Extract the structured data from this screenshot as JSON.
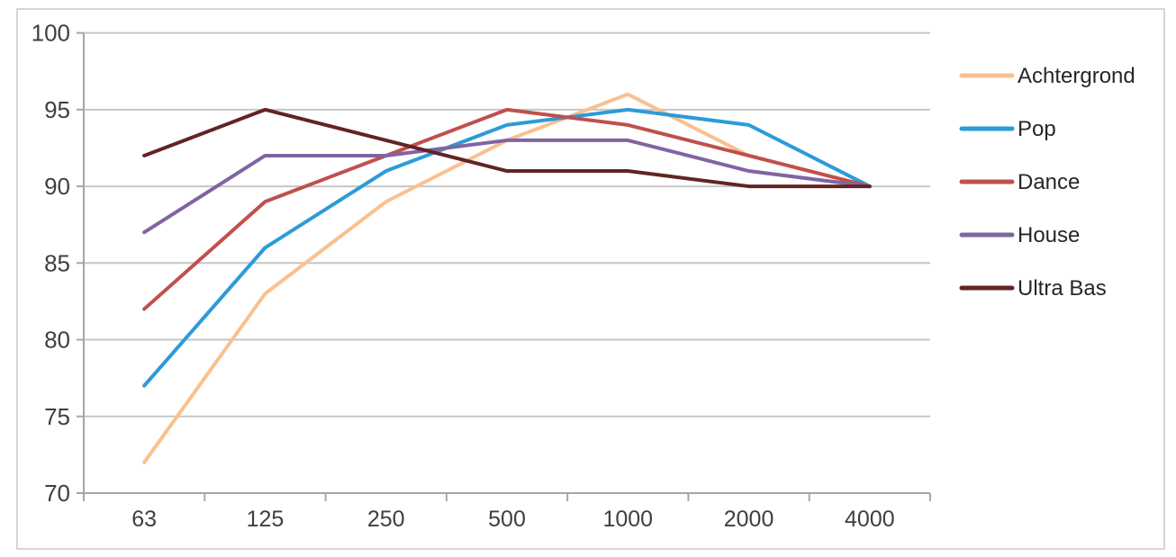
{
  "chart_data": {
    "type": "line",
    "title": "",
    "categories": [
      "63",
      "125",
      "250",
      "500",
      "1000",
      "2000",
      "4000"
    ],
    "series": [
      {
        "name": "Achtergrond",
        "color": "#FAC08F",
        "values": [
          72,
          83,
          89,
          93,
          96,
          92,
          90
        ]
      },
      {
        "name": "Pop",
        "color": "#2D9BD8",
        "values": [
          77,
          86,
          91,
          94,
          95,
          94,
          90
        ]
      },
      {
        "name": "Dance",
        "color": "#C0504D",
        "values": [
          82,
          89,
          92,
          95,
          94,
          92,
          90
        ]
      },
      {
        "name": "House",
        "color": "#8064A2",
        "values": [
          87,
          92,
          92,
          93,
          93,
          91,
          90
        ]
      },
      {
        "name": "Ultra Bas",
        "color": "#622423",
        "values": [
          92,
          95,
          93,
          91,
          91,
          90,
          90
        ]
      }
    ],
    "y_axis": {
      "min": 70,
      "max": 100,
      "step": 5,
      "tick_labels": [
        "70",
        "75",
        "80",
        "85",
        "90",
        "95",
        "100"
      ]
    },
    "x_axis": {
      "tick_labels": [
        "63",
        "125",
        "250",
        "500",
        "1000",
        "2000",
        "4000"
      ]
    },
    "legend": {
      "position": "right",
      "entries": [
        "Achtergrond",
        "Pop",
        "Dance",
        "House",
        "Ultra Bas"
      ]
    },
    "grid": "horizontal",
    "style_colors": {
      "gridline": "#C6C6C6",
      "axis_line": "#A6A6A6",
      "tick_text": "#3F3F3F",
      "legend_text": "#262626",
      "frame_border": "#C9C9C9",
      "background": "#FFFFFF"
    }
  }
}
